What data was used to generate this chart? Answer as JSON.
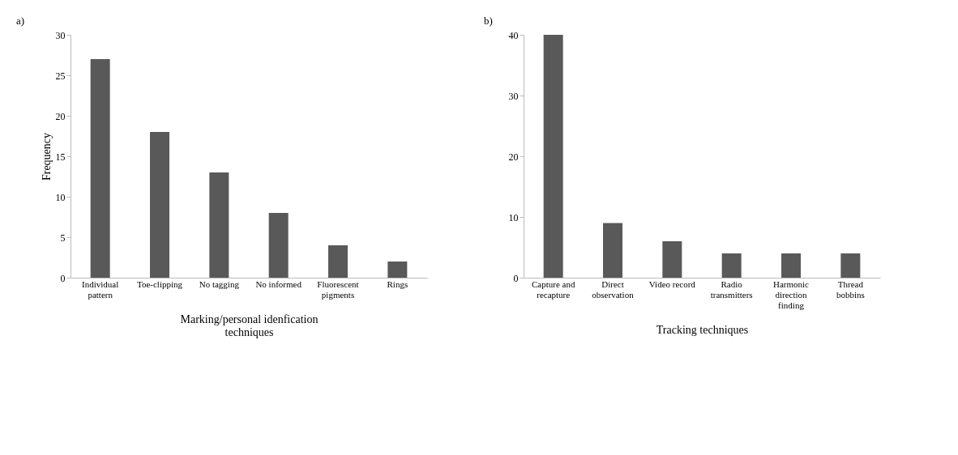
{
  "chart_data": [
    {
      "type": "bar",
      "title": "a)",
      "ylabel": "Frequency",
      "xlabel": "Marking/personal idenfication\ntechniques",
      "categories": [
        "Individual\npattern",
        "Toe-clipping",
        "No tagging",
        "No informed",
        "Fluorescent\npigments",
        "Rings"
      ],
      "values": [
        27,
        18,
        13,
        8,
        4,
        2
      ],
      "color": "#595959",
      "ylim": [
        0,
        30
      ],
      "yticks": [
        0,
        5,
        10,
        15,
        20,
        25,
        30
      ],
      "grid": false
    },
    {
      "type": "bar",
      "title": "b)",
      "xlabel": "Tracking techniques",
      "categories": [
        "Capture and\nrecapture",
        "Direct\nobservation",
        "Video record",
        "Radio\ntransmitters",
        "Harmonic\ndirection\nfinding",
        "Thread\nbobbins"
      ],
      "values": [
        40,
        9,
        6,
        4,
        4,
        4
      ],
      "color": "#595959",
      "ylim": [
        0,
        40
      ],
      "yticks": [
        0,
        10,
        20,
        30,
        40
      ],
      "grid": false
    }
  ]
}
